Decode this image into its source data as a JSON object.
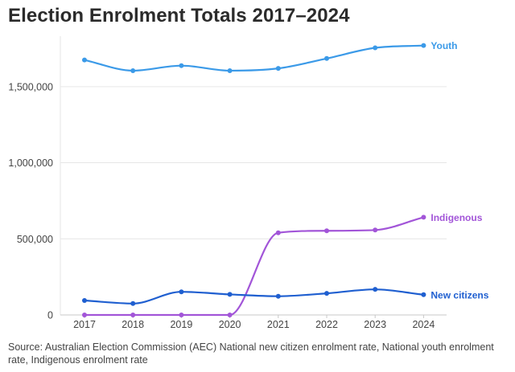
{
  "page": {
    "title": "Election Enrolment Totals 2017–2024",
    "source": "Source: Australian Election Commission (AEC) National new citizen enrolment rate, National youth enrolment rate, Indigenous enrolment rate"
  },
  "chart_data": {
    "type": "line",
    "title": "Election Enrolment Totals 2017–2024",
    "xlabel": "",
    "ylabel": "",
    "categories": [
      "2017",
      "2018",
      "2019",
      "2020",
      "2021",
      "2022",
      "2023",
      "2024"
    ],
    "ylim": [
      0,
      1800000
    ],
    "yticks": [
      0,
      500000,
      1000000,
      1500000
    ],
    "ytick_labels": [
      "0",
      "500,000",
      "1,000,000",
      "1,500,000"
    ],
    "grid": "horizontal",
    "series": [
      {
        "name": "Youth",
        "color": "#3b9ae8",
        "values": [
          1675000,
          1605000,
          1638000,
          1605000,
          1620000,
          1685000,
          1755000,
          1770000
        ]
      },
      {
        "name": "Indigenous",
        "color": "#a255d8",
        "values": [
          0,
          0,
          0,
          0,
          540000,
          553000,
          558000,
          642000
        ]
      },
      {
        "name": "New citizens",
        "color": "#1f5fd0",
        "values": [
          95000,
          75000,
          152000,
          135000,
          123000,
          142000,
          168000,
          133000
        ]
      }
    ]
  }
}
